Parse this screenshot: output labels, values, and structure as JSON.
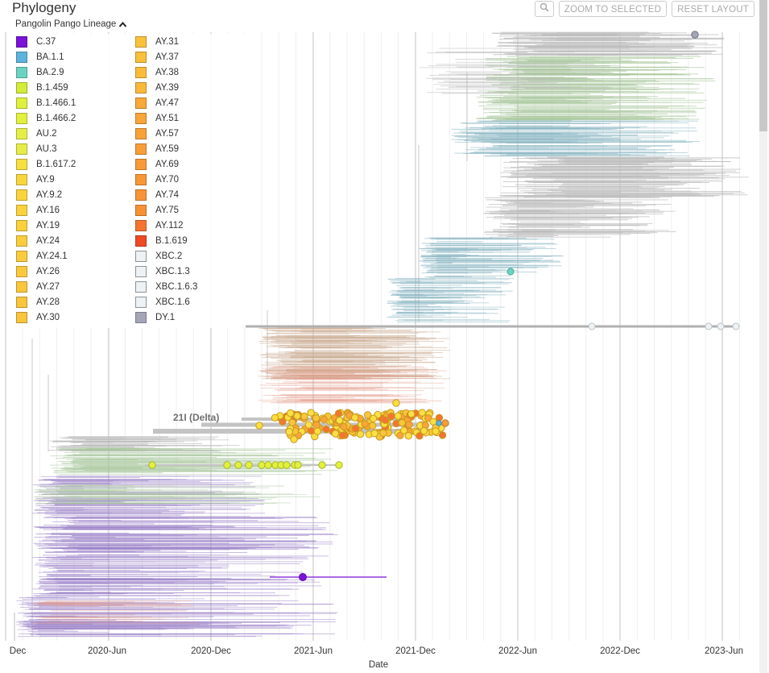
{
  "panel": {
    "title": "Phylogeny"
  },
  "toolbar": {
    "search_icon": "magnifier-icon",
    "zoom_label": "ZOOM TO SELECTED",
    "reset_label": "RESET LAYOUT"
  },
  "legend": {
    "title": "Pangolin Pango Lineage",
    "toggle_icon": "chevron-up-icon",
    "columns": [
      [
        {
          "label": "C.37",
          "color": "#7b12d8"
        },
        {
          "label": "BA.1.1",
          "color": "#5fb3dc"
        },
        {
          "label": "BA.2.9",
          "color": "#6cd3c2"
        },
        {
          "label": "B.1.459",
          "color": "#d4ec3a"
        },
        {
          "label": "B.1.466.1",
          "color": "#dff03d"
        },
        {
          "label": "B.1.466.2",
          "color": "#e2f03e"
        },
        {
          "label": "AU.2",
          "color": "#e4ee45"
        },
        {
          "label": "AU.3",
          "color": "#e6ed48"
        },
        {
          "label": "B.1.617.2",
          "color": "#f6df3f"
        },
        {
          "label": "AY.9",
          "color": "#f9d63d"
        },
        {
          "label": "AY.9.2",
          "color": "#f9d43d"
        },
        {
          "label": "AY.16",
          "color": "#fad23d"
        },
        {
          "label": "AY.19",
          "color": "#fad03d"
        },
        {
          "label": "AY.24",
          "color": "#facd3c"
        },
        {
          "label": "AY.24.1",
          "color": "#facb3c"
        },
        {
          "label": "AY.26",
          "color": "#fac93c"
        },
        {
          "label": "AY.27",
          "color": "#fac73c"
        },
        {
          "label": "AY.28",
          "color": "#fac53b"
        },
        {
          "label": "AY.30",
          "color": "#fac43b"
        }
      ],
      [
        {
          "label": "AY.31",
          "color": "#fac23b"
        },
        {
          "label": "AY.37",
          "color": "#fac03b"
        },
        {
          "label": "AY.38",
          "color": "#f9bd3a"
        },
        {
          "label": "AY.39",
          "color": "#f9b93a"
        },
        {
          "label": "AY.47",
          "color": "#f8a93a"
        },
        {
          "label": "AY.51",
          "color": "#f8a539"
        },
        {
          "label": "AY.57",
          "color": "#f8a139"
        },
        {
          "label": "AY.59",
          "color": "#f89e39"
        },
        {
          "label": "AY.69",
          "color": "#f89a38"
        },
        {
          "label": "AY.70",
          "color": "#f89738"
        },
        {
          "label": "AY.74",
          "color": "#f89438"
        },
        {
          "label": "AY.75",
          "color": "#f79137"
        },
        {
          "label": "AY.112",
          "color": "#f47430"
        },
        {
          "label": "B.1.619",
          "color": "#ee4a25"
        },
        {
          "label": "XBC.2",
          "color": "#eef2f4"
        },
        {
          "label": "XBC.1.3",
          "color": "#eef2f4"
        },
        {
          "label": "XBC.1.6.3",
          "color": "#eef2f4"
        },
        {
          "label": "XBC.1.6",
          "color": "#eef2f4"
        },
        {
          "label": "DY.1",
          "color": "#a4a6b8"
        }
      ]
    ]
  },
  "chart_data": {
    "type": "tree",
    "xlabel": "Date",
    "x_ticks": [
      "Dec",
      "2020-Jun",
      "2020-Dec",
      "2021-Jun",
      "2021-Dec",
      "2022-Jun",
      "2022-Dec",
      "2023-Jun"
    ],
    "clade_label": "21I (Delta)",
    "colors": {
      "grid": "#dcdcdc",
      "branch_gray": "#bcbcbc",
      "purple": "#9a80c8",
      "green": "#a5c89a",
      "teal": "#7fb3c0"
    }
  }
}
